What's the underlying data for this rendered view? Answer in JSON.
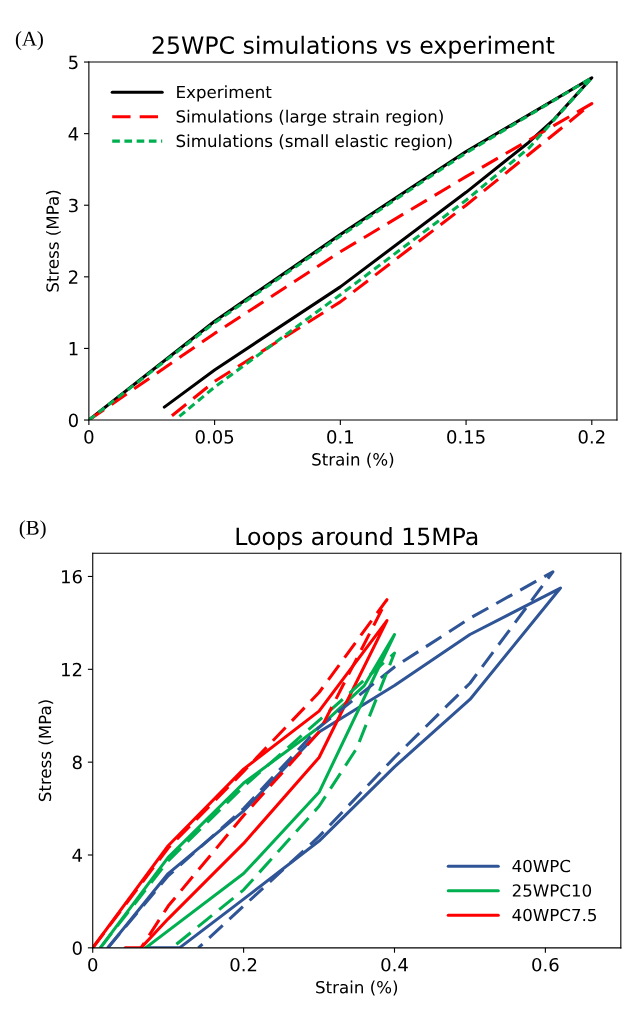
{
  "chart_data": [
    {
      "type": "line",
      "title": "25WPC simulations vs experiment",
      "xlabel": "Strain (%)",
      "ylabel": "Stress (MPa)",
      "annotations": [
        "(A)"
      ],
      "xlim": [
        0,
        0.21
      ],
      "ylim": [
        0,
        5
      ],
      "xticks": [
        0,
        0.05,
        0.1,
        0.15,
        0.2
      ],
      "yticks": [
        0,
        1,
        2,
        3,
        4,
        5
      ],
      "grid": false,
      "legend": "upper left",
      "series": [
        {
          "name": "Experiment",
          "color": "#000000",
          "line_style": "solid",
          "x": [
            0,
            0.05,
            0.1,
            0.15,
            0.2,
            0.185,
            0.175,
            0.15,
            0.1,
            0.05,
            0.03
          ],
          "values": [
            0,
            1.38,
            2.59,
            3.75,
            4.78,
            4.2,
            3.88,
            3.18,
            1.86,
            0.7,
            0.18
          ]
        },
        {
          "name": "Simulations (large strain region)",
          "color": "#ff0000",
          "line_style": "dashed",
          "x": [
            0,
            0.05,
            0.1,
            0.15,
            0.2,
            0.15,
            0.1,
            0.05,
            0.032
          ],
          "values": [
            0,
            1.21,
            2.35,
            3.4,
            4.42,
            3.0,
            1.65,
            0.54,
            0.03
          ]
        },
        {
          "name": "Simulations (small elastic region)",
          "color": "#00b050",
          "line_style": "dotted",
          "x": [
            0,
            0.05,
            0.1,
            0.15,
            0.2,
            0.175,
            0.15,
            0.1,
            0.05,
            0.036
          ],
          "values": [
            0,
            1.36,
            2.57,
            3.73,
            4.78,
            3.8,
            3.07,
            1.75,
            0.46,
            0.05
          ]
        }
      ]
    },
    {
      "type": "line",
      "title": "Loops around 15MPa",
      "xlabel": "Strain (%)",
      "ylabel": "Stress (MPa)",
      "annotations": [
        "(B)"
      ],
      "xlim": [
        0,
        0.7
      ],
      "ylim": [
        0,
        17
      ],
      "xticks": [
        0,
        0.2,
        0.4,
        0.6
      ],
      "yticks": [
        0,
        4,
        8,
        12,
        16
      ],
      "grid": false,
      "legend": "lower right",
      "series": [
        {
          "name": "40WPC",
          "color": "#2f5597",
          "line_style": "solid",
          "x": [
            0.02,
            0.1,
            0.2,
            0.3,
            0.4,
            0.5,
            0.62,
            0.5,
            0.4,
            0.3,
            0.2,
            0.115,
            0.07
          ],
          "values": [
            0,
            3.2,
            5.9,
            9.3,
            11.3,
            13.5,
            15.5,
            10.7,
            7.8,
            4.6,
            2.1,
            0,
            0
          ]
        },
        {
          "name": "25WPC10",
          "color": "#00b050",
          "line_style": "solid",
          "x": [
            0.01,
            0.1,
            0.2,
            0.3,
            0.36,
            0.4,
            0.3,
            0.2,
            0.07
          ],
          "values": [
            0,
            3.9,
            7.1,
            9.5,
            11.3,
            13.5,
            6.7,
            3.2,
            0
          ]
        },
        {
          "name": "40WPC7.5",
          "color": "#ff0000",
          "line_style": "solid",
          "x": [
            0,
            0.1,
            0.2,
            0.3,
            0.39,
            0.3,
            0.2,
            0.1,
            0.064,
            0.043
          ],
          "values": [
            0,
            4.4,
            7.7,
            10.2,
            14.1,
            8.2,
            4.5,
            1.25,
            0,
            0
          ]
        },
        {
          "color": "#2f5597",
          "line_style": "dashed",
          "x": [
            0.02,
            0.1,
            0.2,
            0.3,
            0.4,
            0.5,
            0.61,
            0.5,
            0.4,
            0.3,
            0.2,
            0.14
          ],
          "values": [
            0,
            3.1,
            6.0,
            9.5,
            12.1,
            14.2,
            16.2,
            11.4,
            8.2,
            4.8,
            1.8,
            0
          ]
        },
        {
          "color": "#00b050",
          "line_style": "dashed",
          "x": [
            0.01,
            0.1,
            0.2,
            0.3,
            0.4,
            0.35,
            0.3,
            0.2,
            0.105
          ],
          "values": [
            0,
            3.75,
            6.95,
            9.8,
            12.7,
            8.6,
            6.1,
            2.5,
            0
          ]
        },
        {
          "color": "#ff0000",
          "line_style": "dashed",
          "x": [
            0,
            0.1,
            0.2,
            0.3,
            0.39,
            0.3,
            0.2,
            0.1,
            0.064
          ],
          "values": [
            0,
            4.3,
            7.6,
            11.0,
            15.0,
            9.3,
            5.7,
            1.8,
            0
          ]
        }
      ]
    }
  ]
}
